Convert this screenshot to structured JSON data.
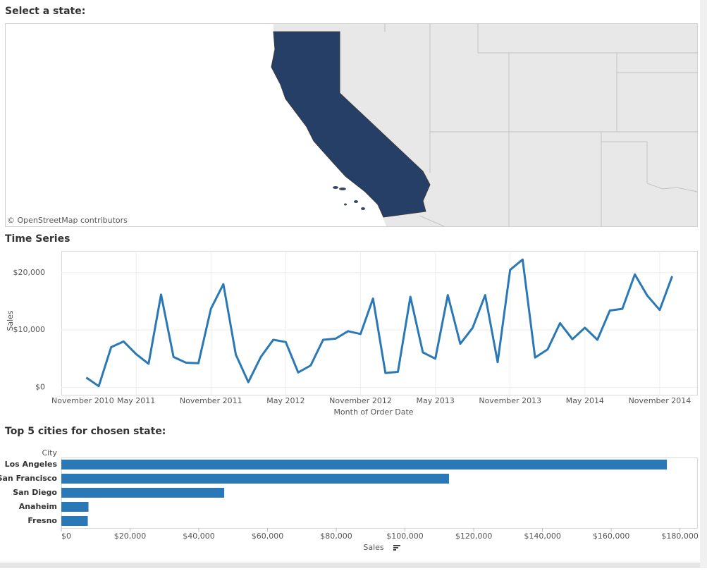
{
  "map": {
    "title": "Select a state:",
    "attribution": "© OpenStreetMap contributors"
  },
  "chart_data": [
    {
      "type": "line",
      "title": "Time Series",
      "xlabel": "Month of Order Date",
      "ylabel": "Sales",
      "color": "#2a78b5",
      "grid": true,
      "x": [
        "2011-01",
        "2011-02",
        "2011-03",
        "2011-04",
        "2011-05",
        "2011-06",
        "2011-07",
        "2011-08",
        "2011-09",
        "2011-10",
        "2011-11",
        "2011-12",
        "2012-01",
        "2012-02",
        "2012-03",
        "2012-04",
        "2012-05",
        "2012-06",
        "2012-07",
        "2012-08",
        "2012-09",
        "2012-10",
        "2012-11",
        "2012-12",
        "2013-01",
        "2013-02",
        "2013-03",
        "2013-04",
        "2013-05",
        "2013-06",
        "2013-07",
        "2013-08",
        "2013-09",
        "2013-10",
        "2013-11",
        "2013-12",
        "2014-01",
        "2014-02",
        "2014-03",
        "2014-04",
        "2014-05",
        "2014-06",
        "2014-07",
        "2014-08",
        "2014-09",
        "2014-10",
        "2014-11",
        "2014-12"
      ],
      "values": [
        1700,
        200,
        7000,
        8000,
        5800,
        4100,
        16200,
        5300,
        4300,
        4200,
        13700,
        18000,
        5700,
        900,
        5300,
        8300,
        7900,
        2600,
        3800,
        8300,
        8500,
        9800,
        9300,
        15500,
        2500,
        2700,
        15800,
        6100,
        5000,
        16100,
        7600,
        10400,
        16100,
        4400,
        20500,
        22300,
        5200,
        6600,
        11200,
        8400,
        10400,
        8300,
        13400,
        13700,
        19700,
        16000,
        13500,
        19400
      ],
      "xlim": [
        "2010-11",
        "2015-02"
      ],
      "xticks": [
        {
          "value": "2010-11",
          "label": "November 2010"
        },
        {
          "value": "2011-05",
          "label": "May 2011"
        },
        {
          "value": "2011-11",
          "label": "November 2011"
        },
        {
          "value": "2012-05",
          "label": "May 2012"
        },
        {
          "value": "2012-11",
          "label": "November 2012"
        },
        {
          "value": "2013-05",
          "label": "May 2013"
        },
        {
          "value": "2013-11",
          "label": "November 2013"
        },
        {
          "value": "2014-05",
          "label": "May 2014"
        },
        {
          "value": "2014-11",
          "label": "November 2014"
        }
      ],
      "ylim": [
        -1300,
        23800
      ],
      "yticks": [
        {
          "value": 0,
          "label": "$0"
        },
        {
          "value": 10000,
          "label": "$10,000"
        },
        {
          "value": 20000,
          "label": "$20,000"
        }
      ]
    },
    {
      "type": "barh",
      "title": "Top 5 cities for chosen state:",
      "ylabel": "City",
      "xlabel": "Sales",
      "color": "#2a78b5",
      "grid": false,
      "categories": [
        "Los Angeles",
        "San Francisco",
        "San Diego",
        "Anaheim",
        "Fresno"
      ],
      "values": [
        176200,
        112800,
        47400,
        7900,
        7700
      ],
      "xlim": [
        0,
        185000
      ],
      "xticks": [
        {
          "value": 0,
          "label": "$0"
        },
        {
          "value": 20000,
          "label": "$20,000"
        },
        {
          "value": 40000,
          "label": "$40,000"
        },
        {
          "value": 60000,
          "label": "$60,000"
        },
        {
          "value": 80000,
          "label": "$80,000"
        },
        {
          "value": 100000,
          "label": "$100,000"
        },
        {
          "value": 120000,
          "label": "$120,000"
        },
        {
          "value": 140000,
          "label": "$140,000"
        },
        {
          "value": 160000,
          "label": "$160,000"
        },
        {
          "value": 180000,
          "label": "$180,000"
        }
      ]
    }
  ]
}
